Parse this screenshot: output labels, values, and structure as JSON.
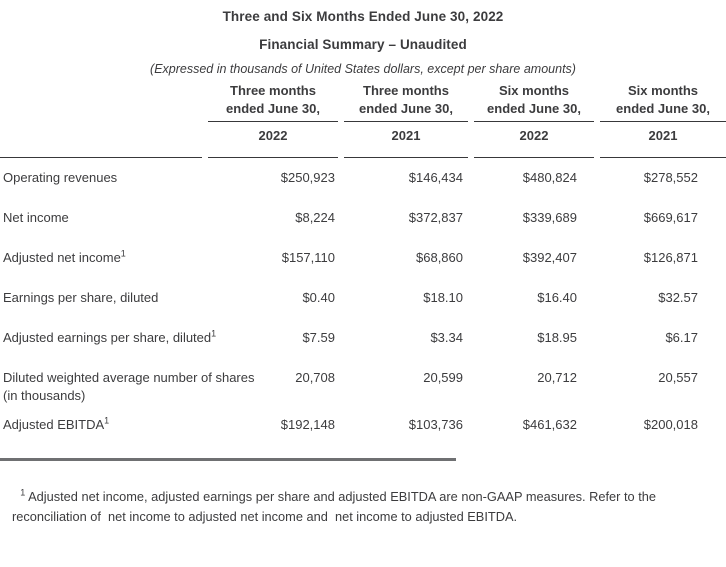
{
  "document": {
    "title_line1": "Three and Six Months Ended June 30, 2022",
    "title_line2": "Financial Summary – Unaudited",
    "subtitle": "(Expressed in thousands of United States dollars, except per share amounts)"
  },
  "table": {
    "columns": [
      {
        "line1": "Three months",
        "line2": "ended June 30,",
        "year": "2022"
      },
      {
        "line1": "Three months",
        "line2": "ended June 30,",
        "year": "2021"
      },
      {
        "line1": "Six months",
        "line2": "ended June 30,",
        "year": "2022"
      },
      {
        "line1": "Six months",
        "line2": "ended June 30,",
        "year": "2021"
      }
    ],
    "rows": [
      {
        "label": "Operating revenues",
        "sup": "",
        "values": [
          "$250,923",
          "$146,434",
          "$480,824",
          "$278,552"
        ]
      },
      {
        "label": "Net income",
        "sup": "",
        "values": [
          "$8,224",
          "$372,837",
          "$339,689",
          "$669,617"
        ]
      },
      {
        "label": "Adjusted net income",
        "sup": "1",
        "values": [
          "$157,110",
          "$68,860",
          "$392,407",
          "$126,871"
        ]
      },
      {
        "label": "Earnings per share, diluted",
        "sup": "",
        "values": [
          "$0.40",
          "$18.10",
          "$16.40",
          "$32.57"
        ]
      },
      {
        "label": "Adjusted earnings per share, diluted",
        "sup": "1",
        "values": [
          "$7.59",
          "$3.34",
          "$18.95",
          "$6.17"
        ]
      },
      {
        "label": "Diluted weighted average number of shares",
        "label2": "(in thousands)",
        "sup": "",
        "values": [
          "20,708",
          "20,599",
          "20,712",
          "20,557"
        ]
      },
      {
        "label": "Adjusted EBITDA",
        "sup": "1",
        "values": [
          "$192,148",
          "$103,736",
          "$461,632",
          "$200,018"
        ]
      }
    ]
  },
  "footnote": {
    "sup": "1",
    "line1": " Adjusted net income, adjusted earnings per share and adjusted EBITDA are non-GAAP measures. Refer to the",
    "line2": "reconciliation of  net income to adjusted net income and  net income to adjusted EBITDA."
  },
  "colors": {
    "text": "#3c3c3e",
    "header_rule": "#38383a",
    "footnote_rule": "#6f7072",
    "background": "#ffffff"
  }
}
